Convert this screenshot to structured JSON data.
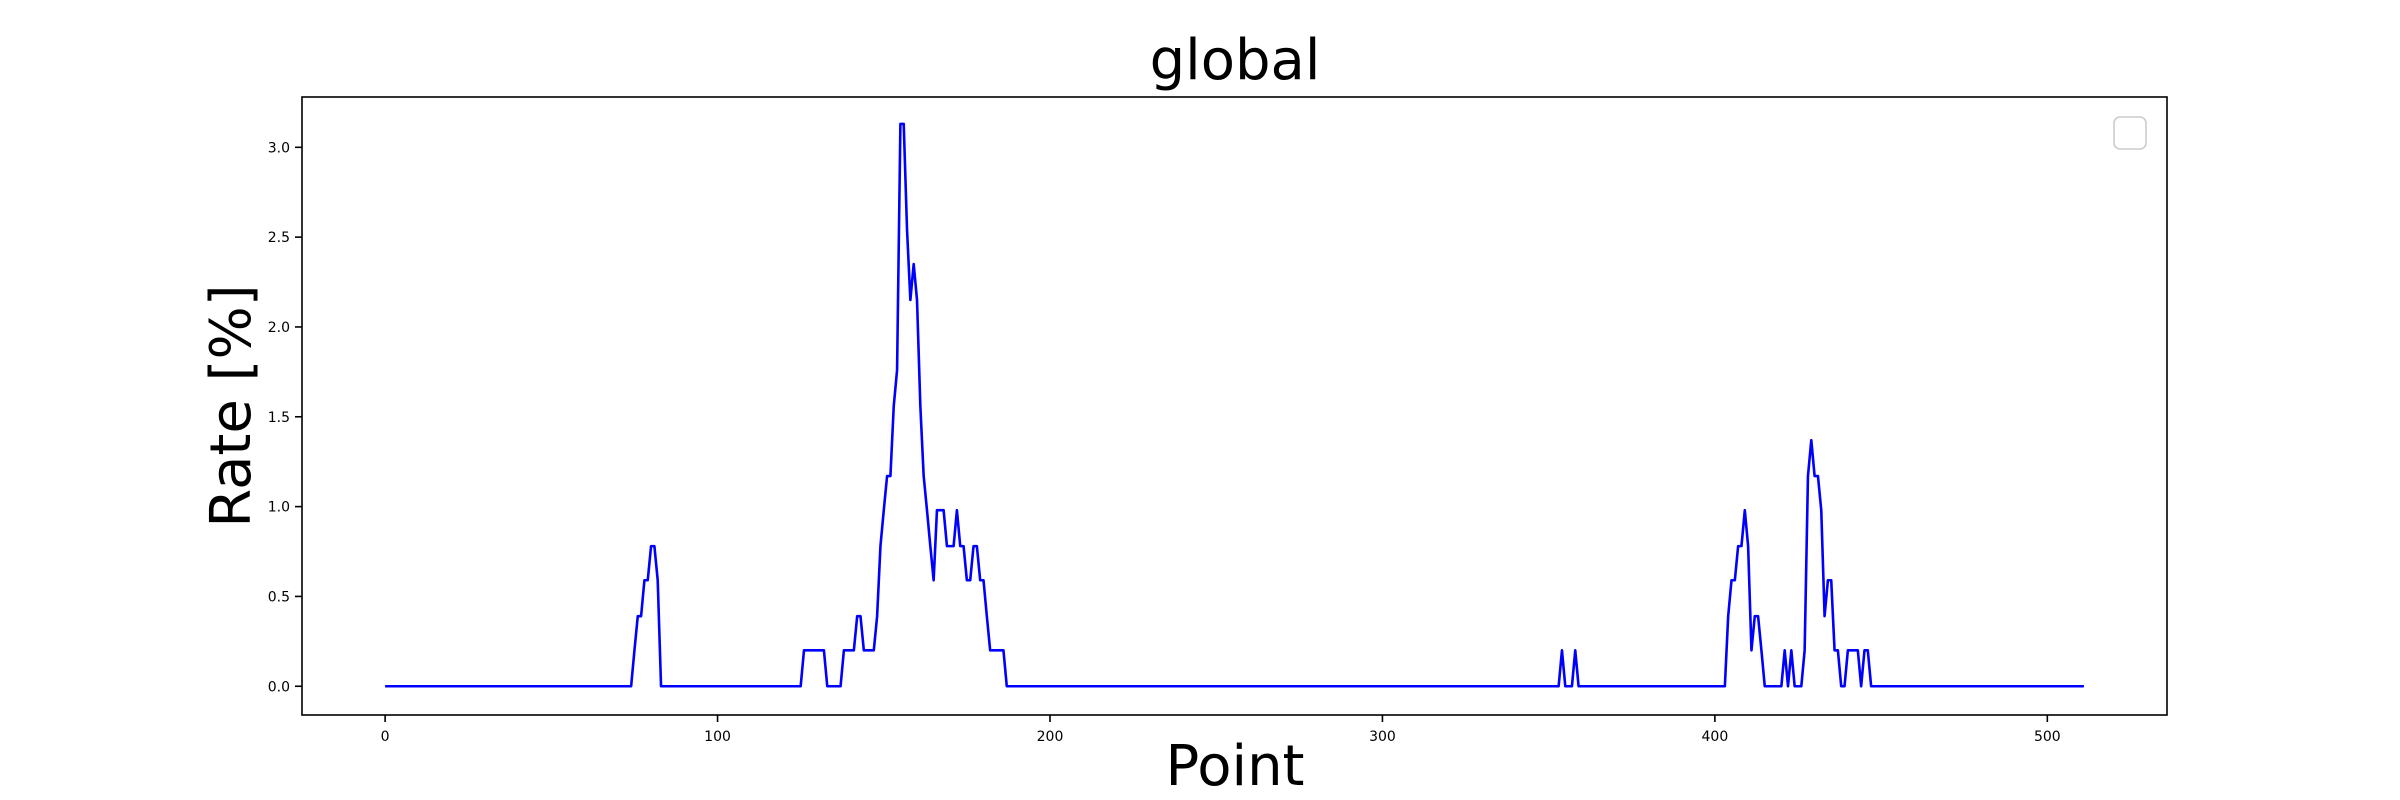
{
  "chart_data": {
    "type": "line",
    "title": "global",
    "xlabel": "Point",
    "ylabel": "Rate [%]",
    "xlim": [
      -25,
      536
    ],
    "ylim": [
      -0.16,
      3.28
    ],
    "x_ticks": [
      0,
      100,
      200,
      300,
      400,
      500
    ],
    "y_ticks": [
      0.0,
      0.5,
      1.0,
      1.5,
      2.0,
      2.5,
      3.0
    ],
    "x_tick_labels": [
      "0",
      "100",
      "200",
      "300",
      "400",
      "500"
    ],
    "y_tick_labels": [
      "0.0",
      "0.5",
      "1.0",
      "1.5",
      "2.0",
      "2.5",
      "3.0"
    ],
    "grid": false,
    "legend": "top-right, empty",
    "colors": {
      "line": "#0000ff",
      "frame": "#000000"
    },
    "series": [
      {
        "x": [
          0,
          74,
          75,
          76,
          77,
          78,
          79,
          80,
          81,
          82,
          83,
          84,
          125,
          126,
          127,
          131,
          132,
          133,
          137,
          138,
          139,
          141,
          142,
          143,
          144,
          145,
          147,
          148,
          149,
          150,
          151,
          152,
          153,
          154,
          155,
          156,
          157,
          158,
          159,
          160,
          161,
          162,
          163,
          164,
          165,
          166,
          167,
          168,
          169,
          170,
          171,
          172,
          173,
          174,
          175,
          176,
          177,
          178,
          179,
          180,
          181,
          182,
          183,
          184,
          185,
          186,
          187,
          188,
          353,
          354,
          355,
          356,
          357,
          358,
          359,
          403,
          404,
          405,
          406,
          407,
          408,
          409,
          410,
          411,
          412,
          413,
          414,
          415,
          416,
          417,
          418,
          419,
          420,
          421,
          422,
          423,
          424,
          425,
          426,
          427,
          428,
          429,
          430,
          431,
          432,
          433,
          434,
          435,
          436,
          437,
          438,
          439,
          440,
          441,
          442,
          443,
          444,
          445,
          446,
          447,
          448,
          449,
          450,
          451,
          511
        ],
        "y": [
          0.0,
          0.0,
          0.2,
          0.39,
          0.39,
          0.59,
          0.59,
          0.78,
          0.78,
          0.59,
          0.0,
          0.0,
          0.0,
          0.2,
          0.2,
          0.2,
          0.2,
          0.0,
          0.0,
          0.2,
          0.2,
          0.2,
          0.39,
          0.39,
          0.2,
          0.2,
          0.2,
          0.39,
          0.78,
          0.98,
          1.17,
          1.17,
          1.56,
          1.76,
          3.13,
          3.13,
          2.54,
          2.15,
          2.35,
          2.15,
          1.56,
          1.17,
          0.98,
          0.78,
          0.59,
          0.98,
          0.98,
          0.98,
          0.78,
          0.78,
          0.78,
          0.98,
          0.78,
          0.78,
          0.59,
          0.59,
          0.78,
          0.78,
          0.59,
          0.59,
          0.39,
          0.2,
          0.2,
          0.2,
          0.2,
          0.2,
          0.0,
          0.0,
          0.0,
          0.2,
          0.0,
          0.0,
          0.0,
          0.2,
          0.0,
          0.0,
          0.39,
          0.59,
          0.59,
          0.78,
          0.78,
          0.98,
          0.78,
          0.2,
          0.39,
          0.39,
          0.2,
          0.0,
          0.0,
          0.0,
          0.0,
          0.0,
          0.0,
          0.2,
          0.0,
          0.2,
          0.0,
          0.0,
          0.0,
          0.2,
          1.17,
          1.37,
          1.17,
          1.17,
          0.98,
          0.39,
          0.59,
          0.59,
          0.2,
          0.2,
          0.0,
          0.0,
          0.2,
          0.2,
          0.2,
          0.2,
          0.0,
          0.2,
          0.2,
          0.0,
          0.0,
          0.0,
          0.0,
          0.0,
          0.0
        ]
      }
    ]
  }
}
